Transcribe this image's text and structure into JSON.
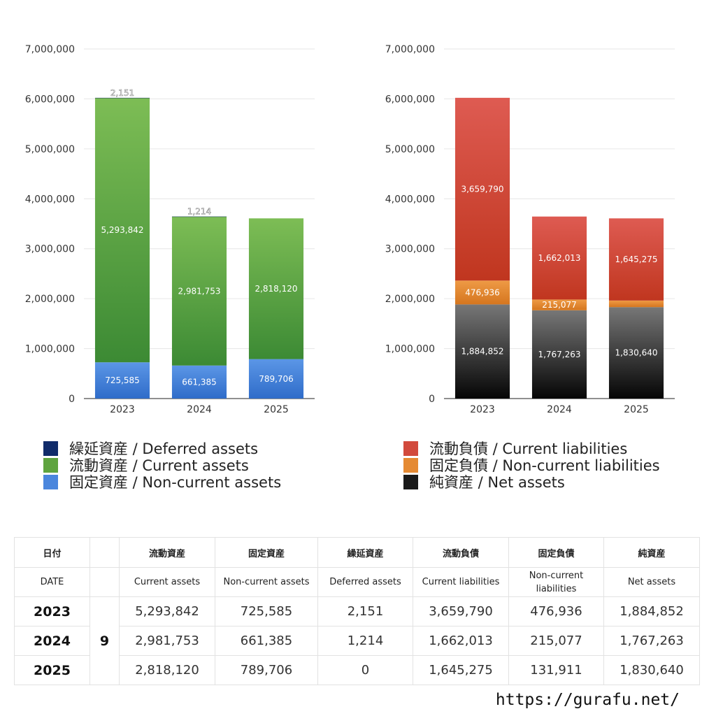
{
  "charts": {
    "chart_data": [
      {
        "type": "bar",
        "stacked": true,
        "title": "",
        "xlabel": "",
        "ylabel": "",
        "categories": [
          "2023",
          "2024",
          "2025"
        ],
        "ylim": [
          0,
          7000000
        ],
        "yticks": [
          "0",
          "1,000,000",
          "2,000,000",
          "3,000,000",
          "4,000,000",
          "5,000,000",
          "6,000,000",
          "7,000,000"
        ],
        "grid": true,
        "series": [
          {
            "name": "固定資産 / Non-current assets",
            "values": [
              725585,
              661385,
              789706
            ],
            "labels": [
              "725,585",
              "661,385",
              "789,706"
            ],
            "color_top": "#5b96e6",
            "color_bottom": "#2f6cc9"
          },
          {
            "name": "流動資産 / Current assets",
            "values": [
              5293842,
              2981753,
              2818120
            ],
            "labels": [
              "5,293,842",
              "2,981,753",
              "2,818,120"
            ],
            "color_top": "#7dbd55",
            "color_bottom": "#3c8a34"
          },
          {
            "name": "繰延資産 / Deferred assets",
            "values": [
              2151,
              1214,
              0
            ],
            "labels": [
              "2,151",
              "1,214",
              ""
            ],
            "color_top": "#102b6a",
            "color_bottom": "#0a1f52"
          }
        ]
      },
      {
        "type": "bar",
        "stacked": true,
        "title": "",
        "xlabel": "",
        "ylabel": "",
        "categories": [
          "2023",
          "2024",
          "2025"
        ],
        "ylim": [
          0,
          7000000
        ],
        "yticks": [
          "0",
          "1,000,000",
          "2,000,000",
          "3,000,000",
          "4,000,000",
          "5,000,000",
          "6,000,000",
          "7,000,000"
        ],
        "grid": true,
        "series": [
          {
            "name": "純資産 / Net assets",
            "values": [
              1884852,
              1767263,
              1830640
            ],
            "labels": [
              "1,884,852",
              "1,767,263",
              "1,830,640"
            ],
            "color_top": "#777777",
            "color_bottom": "#050505"
          },
          {
            "name": "固定負債 / Non-current liabilities",
            "values": [
              476936,
              215077,
              131911
            ],
            "labels": [
              "476,936",
              "215,077",
              "131,911"
            ],
            "color_top": "#ee9a45",
            "color_bottom": "#d5761f"
          },
          {
            "name": "流動負債 / Current liabilities",
            "values": [
              3659790,
              1662013,
              1645275
            ],
            "labels": [
              "3,659,790",
              "1,662,013",
              "1,645,275"
            ],
            "color_top": "#de5b52",
            "color_bottom": "#c0361f"
          }
        ]
      }
    ]
  },
  "legends": {
    "left": [
      {
        "label": "繰延資産 / Deferred assets",
        "color": "#102b6a"
      },
      {
        "label": "流動資産 / Current assets",
        "color": "#5fa43f"
      },
      {
        "label": "固定資産 / Non-current assets",
        "color": "#4a86dd"
      }
    ],
    "right": [
      {
        "label": "流動負債 / Current liabilities",
        "color": "#d24a3c"
      },
      {
        "label": "固定負債 / Non-current liabilities",
        "color": "#e58a33"
      },
      {
        "label": "純資産 / Net assets",
        "color": "#1a1a1a"
      }
    ]
  },
  "table": {
    "headers_ja": [
      "日付",
      "",
      "流動資産",
      "固定資産",
      "繰延資産",
      "流動負債",
      "固定負債",
      "純資産"
    ],
    "headers_en": [
      "DATE",
      "",
      "Current assets",
      "Non-current assets",
      "Deferred assets",
      "Current liabilities",
      "Non-current liabilities",
      "Net assets"
    ],
    "rows": [
      {
        "year": "2023",
        "month": "9",
        "cells": [
          "5,293,842",
          "725,585",
          "2,151",
          "3,659,790",
          "476,936",
          "1,884,852"
        ]
      },
      {
        "year": "2024",
        "month": "9",
        "cells": [
          "2,981,753",
          "661,385",
          "1,214",
          "1,662,013",
          "215,077",
          "1,767,263"
        ]
      },
      {
        "year": "2025",
        "month": "9",
        "cells": [
          "2,818,120",
          "789,706",
          "0",
          "1,645,275",
          "131,911",
          "1,830,640"
        ]
      }
    ]
  },
  "footer": {
    "url": "https://gurafu.net/"
  }
}
